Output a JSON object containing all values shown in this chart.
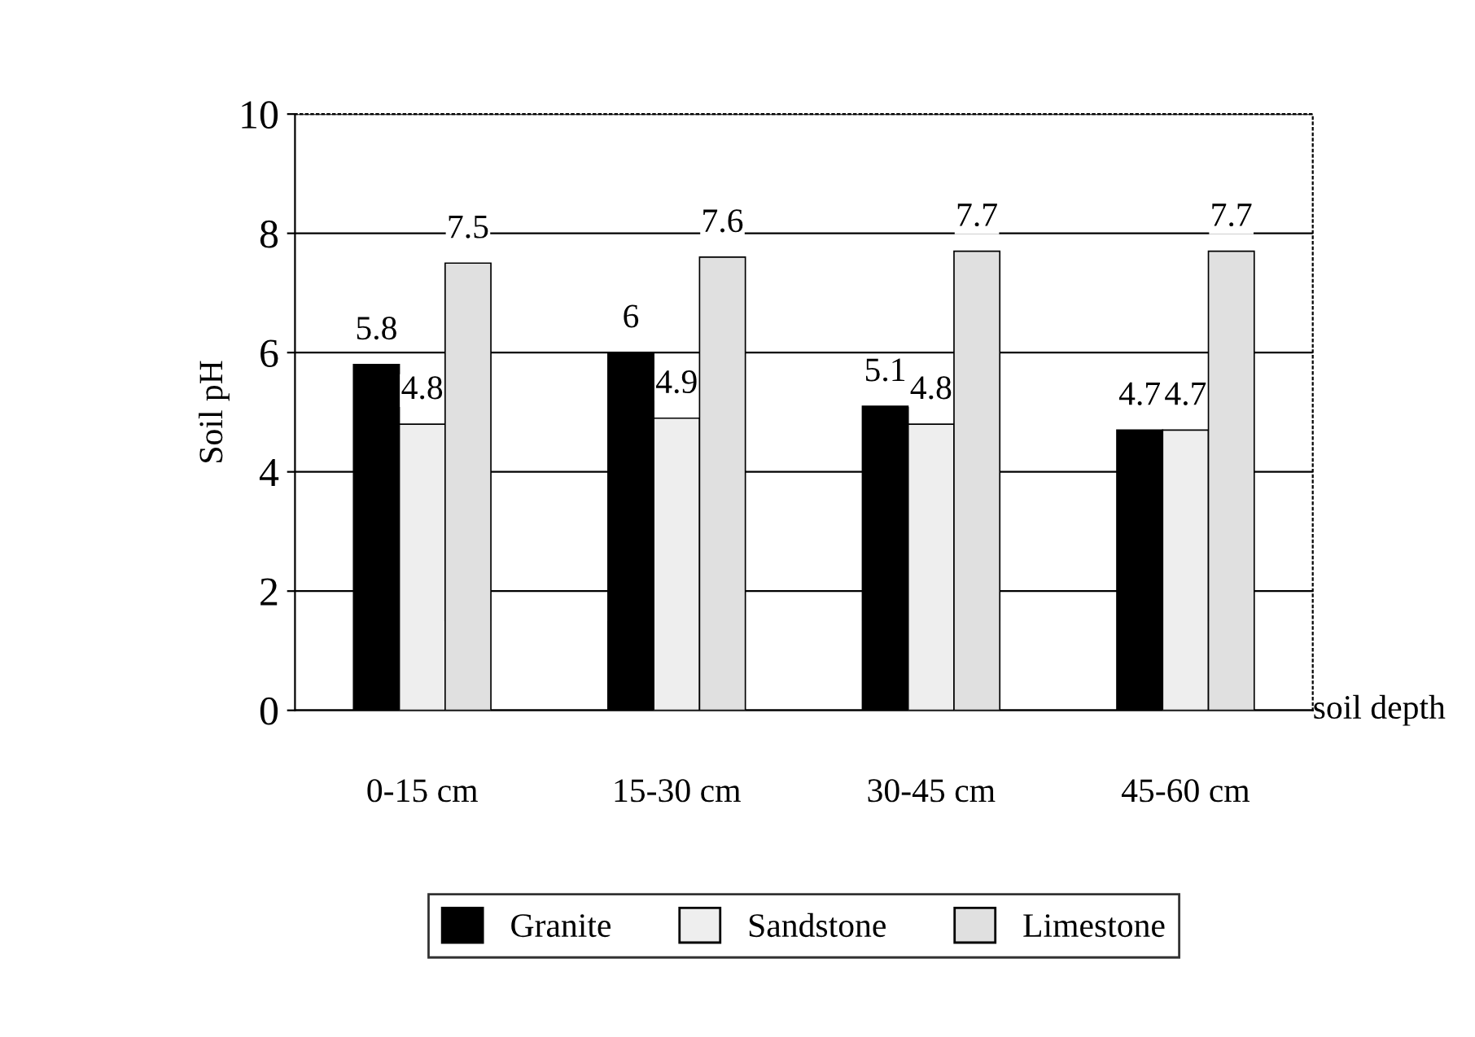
{
  "chart_data": {
    "type": "bar",
    "ylabel": "Soil pH",
    "xlabel": "soil depth",
    "categories": [
      "0-15 cm",
      "15-30 cm",
      "30-45 cm",
      "45-60 cm"
    ],
    "series": [
      {
        "name": "Granite",
        "color": "#000000",
        "values": [
          5.8,
          6,
          5.1,
          4.7
        ]
      },
      {
        "name": "Sandstone",
        "color": "#eeeeee",
        "values": [
          4.8,
          4.9,
          4.8,
          4.7
        ]
      },
      {
        "name": "Limestone",
        "color": "#e0e0e0",
        "values": [
          7.5,
          7.6,
          7.7,
          7.7
        ]
      }
    ],
    "ylim": [
      0,
      10
    ],
    "yticks": [
      0,
      2,
      4,
      6,
      8,
      10
    ],
    "grid": "y",
    "legend": "bottom",
    "data_labels": true
  }
}
